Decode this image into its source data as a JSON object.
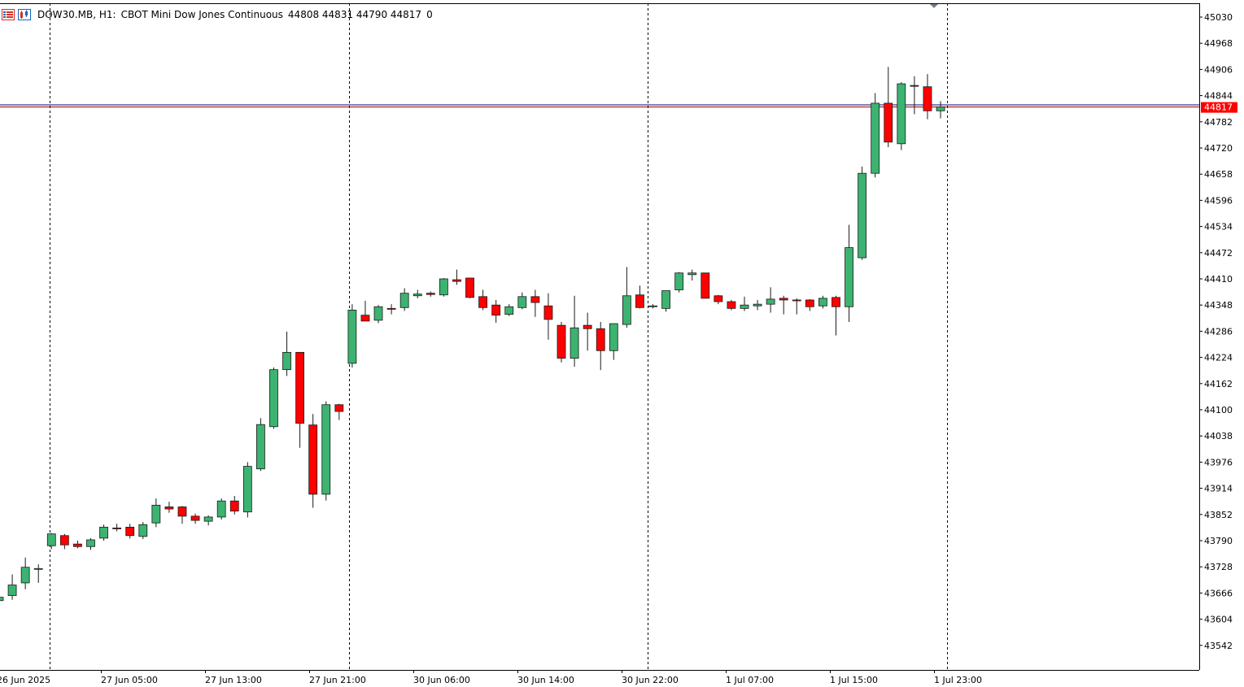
{
  "header": {
    "symbol": "DOW30.MB, H1:",
    "description": "CBOT Mini Dow Jones Continuous",
    "ohlc": "44808 44831 44790 44817",
    "volume": "0"
  },
  "icons": {
    "left": "symbol-list-icon",
    "right": "chart-window-icon"
  },
  "price_marker": {
    "value": "44817",
    "bg": "#ff0000",
    "fg": "#ffffff"
  },
  "colors": {
    "bull": "#3cb371",
    "bear": "#ff0000",
    "wick": "#1a1a1a",
    "bid_line": "#000080",
    "ask_line": "#8b0000",
    "grid": "#000000",
    "axis": "#000000"
  },
  "chart_data": {
    "type": "candlestick",
    "y_ticks": [
      45030,
      44968,
      44906,
      44844,
      44782,
      44720,
      44658,
      44596,
      44534,
      44472,
      44410,
      44348,
      44286,
      44224,
      44162,
      44100,
      44038,
      43976,
      43914,
      43852,
      43790,
      43728,
      43666,
      43604,
      43542
    ],
    "ylim": [
      43478,
      45047
    ],
    "x_labels": [
      "26 Jun 2025",
      "27 Jun 05:00",
      "27 Jun 13:00",
      "27 Jun 21:00",
      "30 Jun 06:00",
      "30 Jun 14:00",
      "30 Jun 22:00",
      "1 Jul 07:00",
      "1 Jul 15:00",
      "1 Jul 23:00"
    ],
    "date_separators": [
      "27 Jun",
      "30 Jun",
      "1 Jul",
      "2 Jul"
    ],
    "bid": 44817,
    "ask": 44822,
    "candles": [
      {
        "o": 43648,
        "h": 43662,
        "l": 43640,
        "c": 43656
      },
      {
        "o": 43660,
        "h": 43710,
        "l": 43650,
        "c": 43685
      },
      {
        "o": 43690,
        "h": 43750,
        "l": 43675,
        "c": 43727
      },
      {
        "o": 43722,
        "h": 43734,
        "l": 43690,
        "c": 43724
      },
      {
        "o": 43778,
        "h": 43808,
        "l": 43770,
        "c": 43806
      },
      {
        "o": 43802,
        "h": 43806,
        "l": 43770,
        "c": 43780
      },
      {
        "o": 43782,
        "h": 43790,
        "l": 43772,
        "c": 43776
      },
      {
        "o": 43776,
        "h": 43796,
        "l": 43768,
        "c": 43792
      },
      {
        "o": 43796,
        "h": 43828,
        "l": 43790,
        "c": 43822
      },
      {
        "o": 43820,
        "h": 43830,
        "l": 43812,
        "c": 43818
      },
      {
        "o": 43822,
        "h": 43830,
        "l": 43795,
        "c": 43802
      },
      {
        "o": 43800,
        "h": 43834,
        "l": 43794,
        "c": 43828
      },
      {
        "o": 43832,
        "h": 43890,
        "l": 43822,
        "c": 43874
      },
      {
        "o": 43870,
        "h": 43882,
        "l": 43856,
        "c": 43865
      },
      {
        "o": 43870,
        "h": 43872,
        "l": 43830,
        "c": 43848
      },
      {
        "o": 43848,
        "h": 43854,
        "l": 43830,
        "c": 43838
      },
      {
        "o": 43836,
        "h": 43850,
        "l": 43826,
        "c": 43846
      },
      {
        "o": 43846,
        "h": 43890,
        "l": 43840,
        "c": 43884
      },
      {
        "o": 43884,
        "h": 43896,
        "l": 43852,
        "c": 43860
      },
      {
        "o": 43858,
        "h": 43976,
        "l": 43845,
        "c": 43966
      },
      {
        "o": 43960,
        "h": 44080,
        "l": 43955,
        "c": 44065
      },
      {
        "o": 44060,
        "h": 44200,
        "l": 44055,
        "c": 44195
      },
      {
        "o": 44195,
        "h": 44285,
        "l": 44180,
        "c": 44236
      },
      {
        "o": 44236,
        "h": 44236,
        "l": 44010,
        "c": 44068
      },
      {
        "o": 44064,
        "h": 44090,
        "l": 43868,
        "c": 43900
      },
      {
        "o": 43900,
        "h": 44120,
        "l": 43885,
        "c": 44112
      },
      {
        "o": 44112,
        "h": 44114,
        "l": 44076,
        "c": 44096
      },
      {
        "o": 44210,
        "h": 44350,
        "l": 44200,
        "c": 44336
      },
      {
        "o": 44324,
        "h": 44358,
        "l": 44310,
        "c": 44310
      },
      {
        "o": 44312,
        "h": 44348,
        "l": 44305,
        "c": 44344
      },
      {
        "o": 44340,
        "h": 44350,
        "l": 44326,
        "c": 44338
      },
      {
        "o": 44342,
        "h": 44388,
        "l": 44334,
        "c": 44376
      },
      {
        "o": 44370,
        "h": 44384,
        "l": 44364,
        "c": 44374
      },
      {
        "o": 44376,
        "h": 44380,
        "l": 44368,
        "c": 44373
      },
      {
        "o": 44372,
        "h": 44412,
        "l": 44368,
        "c": 44410
      },
      {
        "o": 44408,
        "h": 44432,
        "l": 44396,
        "c": 44404
      },
      {
        "o": 44412,
        "h": 44412,
        "l": 44364,
        "c": 44366
      },
      {
        "o": 44368,
        "h": 44384,
        "l": 44336,
        "c": 44342
      },
      {
        "o": 44348,
        "h": 44360,
        "l": 44306,
        "c": 44324
      },
      {
        "o": 44326,
        "h": 44350,
        "l": 44322,
        "c": 44344
      },
      {
        "o": 44342,
        "h": 44378,
        "l": 44338,
        "c": 44368
      },
      {
        "o": 44368,
        "h": 44384,
        "l": 44320,
        "c": 44354
      },
      {
        "o": 44346,
        "h": 44376,
        "l": 44266,
        "c": 44314
      },
      {
        "o": 44300,
        "h": 44308,
        "l": 44212,
        "c": 44222
      },
      {
        "o": 44222,
        "h": 44370,
        "l": 44202,
        "c": 44294
      },
      {
        "o": 44300,
        "h": 44330,
        "l": 44240,
        "c": 44292
      },
      {
        "o": 44292,
        "h": 44308,
        "l": 44194,
        "c": 44240
      },
      {
        "o": 44240,
        "h": 44298,
        "l": 44218,
        "c": 44304
      },
      {
        "o": 44302,
        "h": 44438,
        "l": 44294,
        "c": 44370
      },
      {
        "o": 44372,
        "h": 44394,
        "l": 44340,
        "c": 44342
      },
      {
        "o": 44344,
        "h": 44350,
        "l": 44340,
        "c": 44346
      },
      {
        "o": 44340,
        "h": 44382,
        "l": 44332,
        "c": 44382
      },
      {
        "o": 44384,
        "h": 44426,
        "l": 44378,
        "c": 44424
      },
      {
        "o": 44420,
        "h": 44432,
        "l": 44406,
        "c": 44424
      },
      {
        "o": 44424,
        "h": 44424,
        "l": 44364,
        "c": 44364
      },
      {
        "o": 44370,
        "h": 44372,
        "l": 44350,
        "c": 44356
      },
      {
        "o": 44356,
        "h": 44360,
        "l": 44336,
        "c": 44340
      },
      {
        "o": 44340,
        "h": 44368,
        "l": 44334,
        "c": 44348
      },
      {
        "o": 44346,
        "h": 44360,
        "l": 44336,
        "c": 44350
      },
      {
        "o": 44350,
        "h": 44390,
        "l": 44330,
        "c": 44362
      },
      {
        "o": 44364,
        "h": 44370,
        "l": 44326,
        "c": 44360
      },
      {
        "o": 44360,
        "h": 44364,
        "l": 44326,
        "c": 44358
      },
      {
        "o": 44360,
        "h": 44362,
        "l": 44334,
        "c": 44344
      },
      {
        "o": 44346,
        "h": 44370,
        "l": 44340,
        "c": 44364
      },
      {
        "o": 44366,
        "h": 44370,
        "l": 44276,
        "c": 44344
      },
      {
        "o": 44344,
        "h": 44538,
        "l": 44308,
        "c": 44484
      },
      {
        "o": 44460,
        "h": 44676,
        "l": 44455,
        "c": 44660
      },
      {
        "o": 44660,
        "h": 44850,
        "l": 44650,
        "c": 44826
      },
      {
        "o": 44826,
        "h": 44912,
        "l": 44722,
        "c": 44734
      },
      {
        "o": 44730,
        "h": 44876,
        "l": 44715,
        "c": 44872
      },
      {
        "o": 44868,
        "h": 44890,
        "l": 44800,
        "c": 44867
      },
      {
        "o": 44865,
        "h": 44895,
        "l": 44788,
        "c": 44808
      },
      {
        "o": 44808,
        "h": 44831,
        "l": 44790,
        "c": 44817
      }
    ]
  }
}
